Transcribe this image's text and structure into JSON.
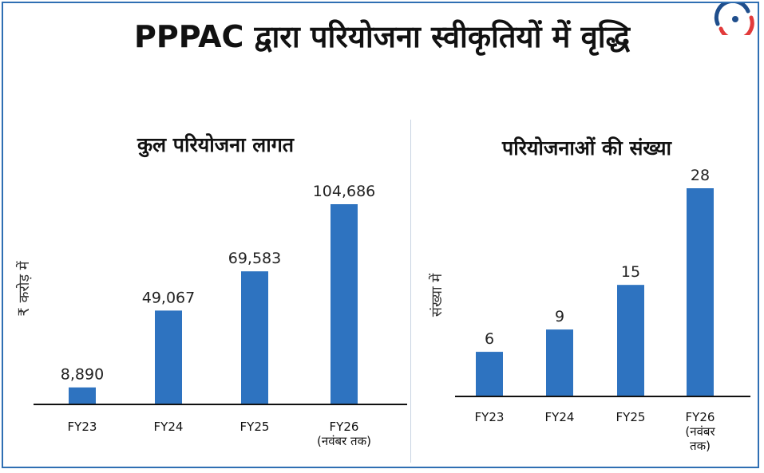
{
  "title": "PPPAC द्वारा परियोजना स्वीकृतियों में वृद्धि",
  "colors": {
    "bar": "#2e73c0",
    "axis": "#111111",
    "frame": "#2f6fb3",
    "logo_blue": "#1f4e8c",
    "logo_red": "#e23b3b"
  },
  "logo_icon": "brand-logo-icon",
  "chart_data": [
    {
      "type": "bar",
      "title": "कुल परियोजना लागत",
      "ylabel": "₹ करोड़ में",
      "categories": [
        "FY23",
        "FY24",
        "FY25",
        "FY26 (नवंबर तक)"
      ],
      "values": [
        8890,
        49067,
        69583,
        104686
      ],
      "value_labels": [
        "8,890",
        "49,067",
        "69,583",
        "104,686"
      ],
      "ylim": [
        0,
        104686
      ],
      "grid": false,
      "legend": "none"
    },
    {
      "type": "bar",
      "title": "परियोजनाओं की संख्या",
      "ylabel": "संख्या में",
      "categories": [
        "FY23",
        "FY24",
        "FY25",
        "FY26 (नवंबर तक)"
      ],
      "values": [
        6,
        9,
        15,
        28
      ],
      "value_labels": [
        "6",
        "9",
        "15",
        "28"
      ],
      "ylim": [
        0,
        28
      ],
      "grid": false,
      "legend": "none"
    }
  ]
}
